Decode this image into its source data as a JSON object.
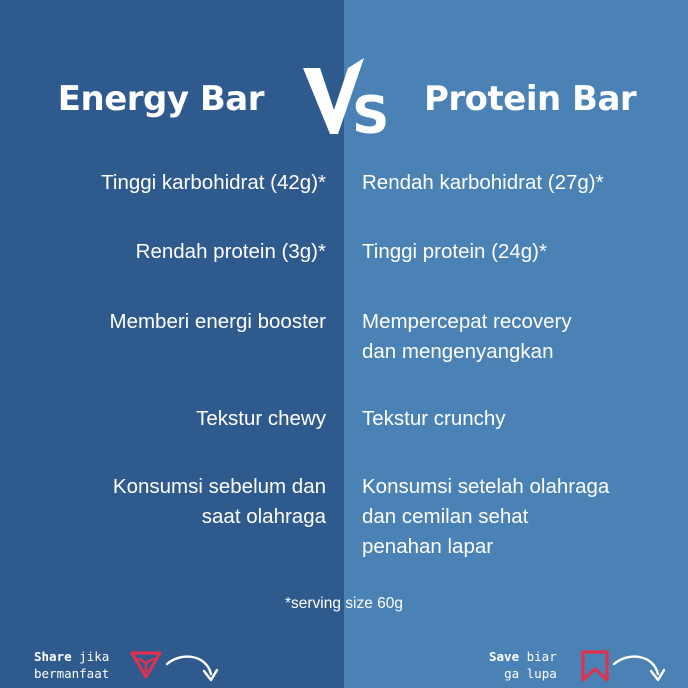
{
  "left_column": {
    "title": "Energy Bar",
    "points": [
      "Tinggi karbohidrat (42g)*",
      "Rendah protein (3g)*",
      "Memberi energi booster",
      "Tekstur chewy",
      "Konsumsi sebelum dan\nsaat olahraga"
    ]
  },
  "right_column": {
    "title": "Protein Bar",
    "points": [
      "Rendah karbohidrat (27g)*",
      "Tinggi protein (24g)*",
      "Mempercepat recovery\ndan mengenyangkan",
      "Tekstur crunchy",
      "Konsumsi setelah olahraga\ndan cemilan sehat\npenahan lapar"
    ]
  },
  "vs_label": "VS",
  "footnote": "*serving size 60g",
  "share": {
    "bold": "Share",
    "line1_rest": " jika",
    "line2": "bermanfaat"
  },
  "save": {
    "bold": "Save",
    "line1_rest": " biar",
    "line2": "ga lupa"
  },
  "colors": {
    "left_panel": "#2f5a8e",
    "right_panel": "#4a82b5",
    "text": "#ffffff",
    "icon_accent": "#e0324e"
  },
  "icons": [
    "vs-logo",
    "share-triangle-icon",
    "bookmark-icon",
    "curved-arrow-icon"
  ]
}
